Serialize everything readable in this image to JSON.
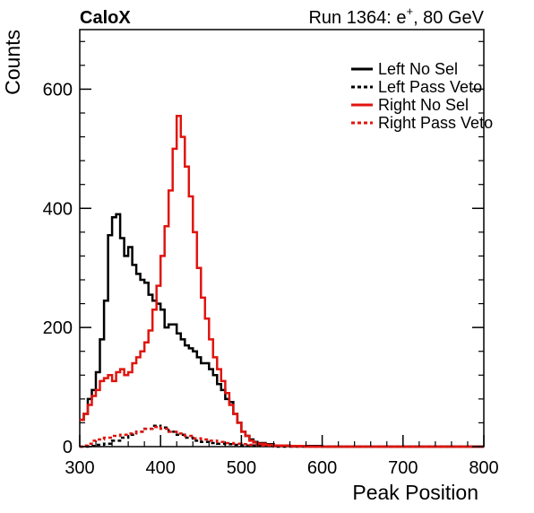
{
  "header": {
    "left": "CaloX",
    "right_prefix": "Run 1364: e",
    "right_sup": "+",
    "right_suffix": ", 80 GeV"
  },
  "chart_data": {
    "type": "line",
    "xlabel": "Peak Position",
    "ylabel": "Counts",
    "xlim": [
      300,
      800
    ],
    "ylim": [
      0,
      700
    ],
    "x_ticks": [
      "300",
      "400",
      "500",
      "600",
      "700",
      "800"
    ],
    "y_ticks": [
      "0",
      "200",
      "400",
      "600"
    ],
    "legend_position": "top-right",
    "series": [
      {
        "name": "Left No Sel",
        "color": "#000000",
        "style": "solid",
        "points": [
          [
            300,
            45
          ],
          [
            305,
            55
          ],
          [
            310,
            80
          ],
          [
            315,
            95
          ],
          [
            320,
            125
          ],
          [
            325,
            180
          ],
          [
            330,
            245
          ],
          [
            335,
            355
          ],
          [
            340,
            385
          ],
          [
            345,
            390
          ],
          [
            350,
            350
          ],
          [
            355,
            320
          ],
          [
            360,
            335
          ],
          [
            365,
            305
          ],
          [
            370,
            290
          ],
          [
            375,
            280
          ],
          [
            380,
            275
          ],
          [
            385,
            255
          ],
          [
            390,
            245
          ],
          [
            395,
            240
          ],
          [
            400,
            230
          ],
          [
            405,
            200
          ],
          [
            410,
            205
          ],
          [
            415,
            205
          ],
          [
            420,
            190
          ],
          [
            425,
            180
          ],
          [
            430,
            170
          ],
          [
            435,
            165
          ],
          [
            440,
            160
          ],
          [
            445,
            150
          ],
          [
            450,
            140
          ],
          [
            455,
            140
          ],
          [
            460,
            130
          ],
          [
            465,
            120
          ],
          [
            470,
            105
          ],
          [
            475,
            95
          ],
          [
            480,
            80
          ],
          [
            485,
            75
          ],
          [
            490,
            55
          ],
          [
            495,
            40
          ],
          [
            500,
            25
          ],
          [
            505,
            18
          ],
          [
            510,
            12
          ],
          [
            515,
            8
          ],
          [
            520,
            6
          ],
          [
            530,
            4
          ],
          [
            540,
            2
          ],
          [
            560,
            1
          ],
          [
            600,
            0
          ],
          [
            800,
            0
          ]
        ]
      },
      {
        "name": "Left Pass Veto",
        "color": "#000000",
        "style": "dashed",
        "points": [
          [
            300,
            0
          ],
          [
            310,
            1
          ],
          [
            320,
            3
          ],
          [
            330,
            5
          ],
          [
            340,
            10
          ],
          [
            350,
            15
          ],
          [
            360,
            20
          ],
          [
            370,
            25
          ],
          [
            380,
            30
          ],
          [
            390,
            35
          ],
          [
            400,
            32
          ],
          [
            410,
            25
          ],
          [
            420,
            20
          ],
          [
            430,
            15
          ],
          [
            440,
            10
          ],
          [
            450,
            8
          ],
          [
            460,
            6
          ],
          [
            470,
            5
          ],
          [
            480,
            4
          ],
          [
            490,
            3
          ],
          [
            500,
            2
          ],
          [
            520,
            1
          ],
          [
            540,
            0
          ],
          [
            800,
            0
          ]
        ]
      },
      {
        "name": "Right No Sel",
        "color": "#e0140f",
        "style": "solid",
        "points": [
          [
            300,
            45
          ],
          [
            305,
            55
          ],
          [
            310,
            70
          ],
          [
            315,
            85
          ],
          [
            320,
            95
          ],
          [
            325,
            110
          ],
          [
            330,
            115
          ],
          [
            335,
            120
          ],
          [
            340,
            110
          ],
          [
            345,
            125
          ],
          [
            350,
            130
          ],
          [
            355,
            120
          ],
          [
            360,
            125
          ],
          [
            365,
            140
          ],
          [
            370,
            150
          ],
          [
            375,
            160
          ],
          [
            380,
            175
          ],
          [
            385,
            195
          ],
          [
            390,
            230
          ],
          [
            395,
            270
          ],
          [
            400,
            320
          ],
          [
            405,
            370
          ],
          [
            410,
            430
          ],
          [
            415,
            500
          ],
          [
            420,
            555
          ],
          [
            425,
            520
          ],
          [
            430,
            470
          ],
          [
            435,
            420
          ],
          [
            440,
            360
          ],
          [
            445,
            300
          ],
          [
            450,
            250
          ],
          [
            455,
            215
          ],
          [
            460,
            180
          ],
          [
            465,
            150
          ],
          [
            470,
            130
          ],
          [
            475,
            110
          ],
          [
            480,
            90
          ],
          [
            485,
            70
          ],
          [
            490,
            55
          ],
          [
            495,
            40
          ],
          [
            500,
            25
          ],
          [
            505,
            18
          ],
          [
            510,
            10
          ],
          [
            515,
            7
          ],
          [
            520,
            5
          ],
          [
            530,
            3
          ],
          [
            540,
            2
          ],
          [
            560,
            1
          ],
          [
            580,
            0
          ],
          [
            800,
            0
          ]
        ]
      },
      {
        "name": "Right Pass Veto",
        "color": "#e0140f",
        "style": "dashed",
        "points": [
          [
            300,
            0
          ],
          [
            305,
            2
          ],
          [
            310,
            5
          ],
          [
            315,
            10
          ],
          [
            320,
            12
          ],
          [
            330,
            15
          ],
          [
            340,
            18
          ],
          [
            350,
            20
          ],
          [
            360,
            22
          ],
          [
            370,
            25
          ],
          [
            380,
            30
          ],
          [
            390,
            33
          ],
          [
            400,
            30
          ],
          [
            410,
            25
          ],
          [
            420,
            22
          ],
          [
            430,
            18
          ],
          [
            440,
            14
          ],
          [
            450,
            12
          ],
          [
            460,
            10
          ],
          [
            470,
            8
          ],
          [
            480,
            6
          ],
          [
            490,
            5
          ],
          [
            500,
            4
          ],
          [
            510,
            3
          ],
          [
            520,
            2
          ],
          [
            540,
            1
          ],
          [
            560,
            0
          ],
          [
            800,
            0
          ]
        ]
      }
    ]
  }
}
